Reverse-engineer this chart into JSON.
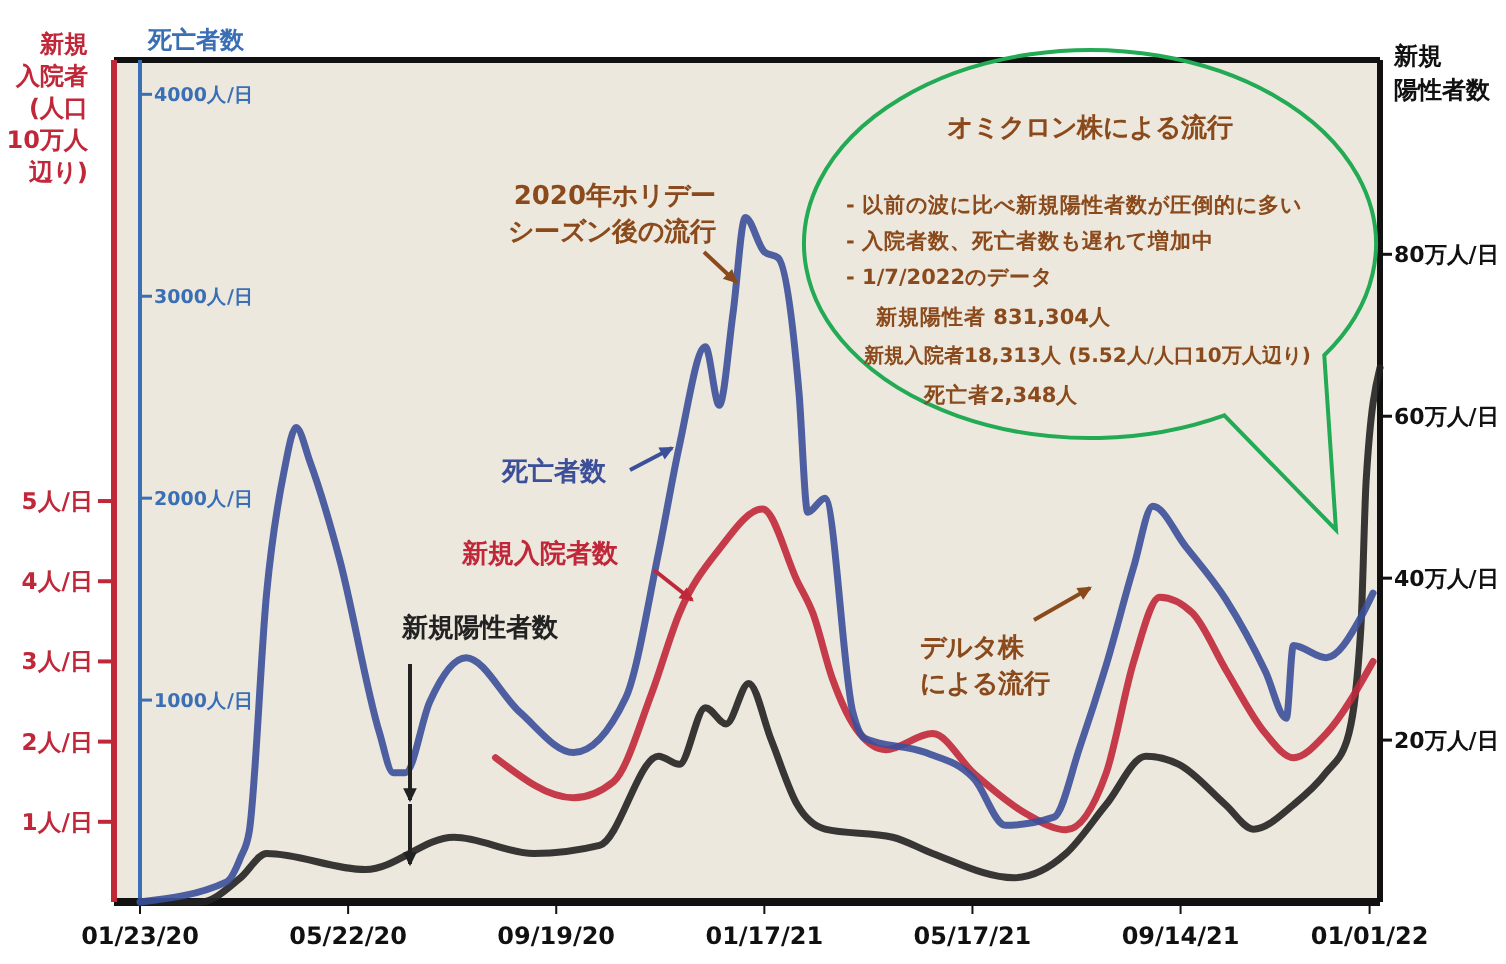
{
  "chart_data": {
    "type": "line",
    "ylabel": "新規入院者(人口10万人辺り)",
    "y2label": "死亡者数",
    "y3label": "新規陽性者数",
    "xlim": [
      "2020-01-08",
      "2022-01-07"
    ],
    "xticks": [
      {
        "value": "2020-01-23",
        "label": "01/23/20"
      },
      {
        "value": "2020-05-22",
        "label": "05/22/20"
      },
      {
        "value": "2020-09-19",
        "label": "09/19/20"
      },
      {
        "value": "2021-01-17",
        "label": "01/17/21"
      },
      {
        "value": "2021-05-17",
        "label": "05/17/21"
      },
      {
        "value": "2021-09-14",
        "label": "09/14/21"
      },
      {
        "value": "2022-01-01",
        "label": "01/01/22"
      }
    ],
    "ylim": [
      0,
      10.5
    ],
    "yticks": [
      {
        "value": 1,
        "label": "1人/日"
      },
      {
        "value": 2,
        "label": "2人/日"
      },
      {
        "value": 3,
        "label": "3人/日"
      },
      {
        "value": 4,
        "label": "4人/日"
      },
      {
        "value": 5,
        "label": "5人/日"
      }
    ],
    "y2lim": [
      0,
      4170
    ],
    "y2ticks": [
      {
        "value": 1000,
        "label": "1000人/日"
      },
      {
        "value": 2000,
        "label": "2000人/日"
      },
      {
        "value": 3000,
        "label": "3000人/日"
      },
      {
        "value": 4000,
        "label": "4000人/日"
      }
    ],
    "y3lim": [
      0,
      104
    ],
    "y3ticks": [
      {
        "value": 20,
        "label": "20万人/日"
      },
      {
        "value": 40,
        "label": "40万人/日"
      },
      {
        "value": 60,
        "label": "60万人/日"
      },
      {
        "value": 80,
        "label": "80万人/日"
      }
    ],
    "series": [
      {
        "name": "新規陽性者数",
        "color": "#222222",
        "axis": "y3",
        "x": [
          "2020-01-23",
          "2020-02-27",
          "2020-03-21",
          "2020-04-05",
          "2020-06-01",
          "2020-07-22",
          "2020-09-06",
          "2020-10-14",
          "2020-11-17",
          "2020-11-29",
          "2020-12-14",
          "2020-12-26",
          "2021-01-08",
          "2021-01-21",
          "2021-02-05",
          "2021-02-21",
          "2021-04-01",
          "2021-04-24",
          "2021-06-10",
          "2021-07-10",
          "2021-08-02",
          "2021-08-25",
          "2021-09-13",
          "2021-10-10",
          "2021-10-26",
          "2021-11-18",
          "2021-12-07",
          "2021-12-19",
          "2021-12-27",
          "2021-12-30",
          "2022-01-07"
        ],
        "values": [
          0,
          0,
          3,
          6,
          4,
          8,
          6,
          7,
          18,
          17,
          24,
          22,
          27,
          20,
          12,
          9,
          8,
          6,
          3,
          6,
          12,
          18,
          17,
          12,
          9,
          12,
          16,
          20,
          34,
          52,
          66
        ]
      },
      {
        "name": "新規入院者数",
        "color": "#c0283a",
        "x": [
          "2020-08-15",
          "2020-09-29",
          "2020-10-22",
          "2020-11-13",
          "2020-11-29",
          "2020-12-22",
          "2021-01-16",
          "2021-02-05",
          "2021-02-14",
          "2021-02-25",
          "2021-03-13",
          "2021-03-28",
          "2021-04-24",
          "2021-05-18",
          "2021-06-17",
          "2021-07-10",
          "2021-08-02",
          "2021-08-18",
          "2021-09-02",
          "2021-09-21",
          "2021-10-10",
          "2021-11-02",
          "2021-11-18",
          "2021-12-07",
          "2022-01-03"
        ],
        "values": [
          1.8,
          1.3,
          1.5,
          2.6,
          3.6,
          4.4,
          4.9,
          4.0,
          3.6,
          2.8,
          2.1,
          1.9,
          2.1,
          1.6,
          1.1,
          0.9,
          1.6,
          3.0,
          3.8,
          3.6,
          2.9,
          2.1,
          1.8,
          2.1,
          3.0
        ]
      },
      {
        "name": "死亡者数",
        "color": "#3b4f9a",
        "axis": "y2",
        "x": [
          "2020-01-23",
          "2020-03-13",
          "2020-03-21",
          "2020-03-26",
          "2020-04-05",
          "2020-04-15",
          "2020-04-22",
          "2020-04-30",
          "2020-05-17",
          "2020-06-09",
          "2020-06-17",
          "2020-06-24",
          "2020-07-08",
          "2020-07-29",
          "2020-08-29",
          "2020-09-29",
          "2020-10-29",
          "2020-11-17",
          "2020-11-29",
          "2020-12-14",
          "2020-12-22",
          "2020-12-30",
          "2021-01-06",
          "2021-01-17",
          "2021-01-25",
          "2021-02-06",
          "2021-02-11",
          "2021-02-21",
          "2021-03-09",
          "2021-03-16",
          "2021-04-20",
          "2021-05-18",
          "2021-06-05",
          "2021-07-03",
          "2021-07-18",
          "2021-08-02",
          "2021-08-18",
          "2021-08-29",
          "2021-09-17",
          "2021-10-10",
          "2021-11-02",
          "2021-11-14",
          "2021-11-18",
          "2021-12-07",
          "2021-12-27",
          "2022-01-03"
        ],
        "values": [
          0,
          100,
          220,
          350,
          1530,
          2130,
          2350,
          2180,
          1700,
          840,
          640,
          640,
          990,
          1210,
          940,
          740,
          1010,
          1730,
          2260,
          2750,
          2460,
          2920,
          3390,
          3220,
          3190,
          2520,
          1930,
          2000,
          940,
          810,
          740,
          610,
          380,
          420,
          770,
          1170,
          1660,
          1960,
          1760,
          1500,
          1140,
          910,
          1270,
          1210,
          1410,
          1530
        ]
      }
    ],
    "annotations": [
      "2020年ホリデーシーズン後の流行",
      "デルタ株による流行",
      "オミクロン株による流行",
      "- 以前の波に比べ新規陽性者数が圧倒的に多い",
      "- 入院者数、死亡者数も遅れて増加中",
      "-  1/7/2022のデータ",
      "新規陽性者 831,304人",
      "新規入院者18,313人 (5.52人/人口10万人辺り)",
      "死亡者2,348人"
    ]
  }
}
